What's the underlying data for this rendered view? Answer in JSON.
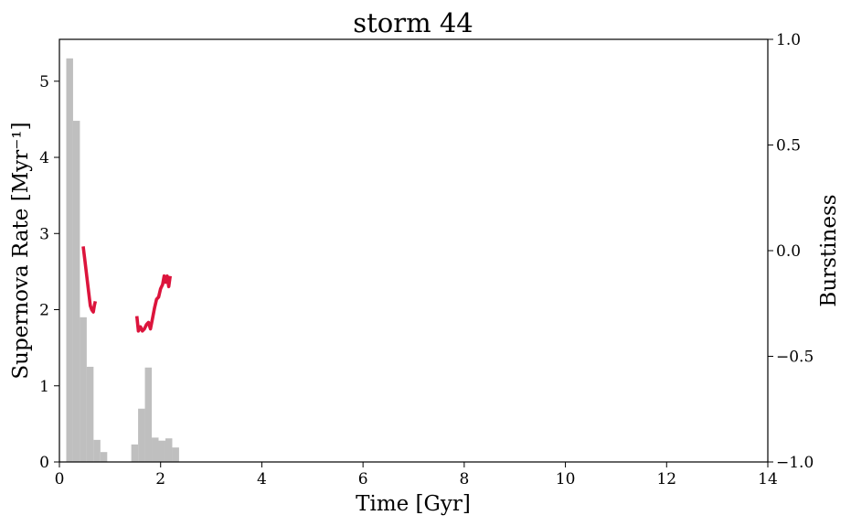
{
  "chart_data": {
    "type": "bar",
    "title": "storm 44",
    "xlabel": "Time [Gyr]",
    "ylabel": "Supernova Rate [Myr⁻¹]",
    "y2label": "Burstiness",
    "xlim": [
      0,
      14
    ],
    "ylim": [
      0,
      5.55
    ],
    "y2lim": [
      -1.0,
      1.0
    ],
    "grid": false,
    "xticks": [
      "0",
      "2",
      "4",
      "6",
      "8",
      "10",
      "12",
      "14"
    ],
    "xtick_values": [
      0,
      2,
      4,
      6,
      8,
      10,
      12,
      14
    ],
    "yticks": [
      "0",
      "1",
      "2",
      "3",
      "4",
      "5"
    ],
    "ytick_values": [
      0,
      1,
      2,
      3,
      4,
      5
    ],
    "y2ticks": [
      "−1.0",
      "−0.5",
      "0.0",
      "0.5",
      "1.0"
    ],
    "y2tick_values": [
      -1.0,
      -0.5,
      0.0,
      0.5,
      1.0
    ],
    "histogram": {
      "color": "#bfbfbf",
      "bin_width": 0.135,
      "bins": [
        {
          "x": 0.135,
          "value": 5.3
        },
        {
          "x": 0.27,
          "value": 4.48
        },
        {
          "x": 0.405,
          "value": 1.9
        },
        {
          "x": 0.54,
          "value": 1.25
        },
        {
          "x": 0.675,
          "value": 0.29
        },
        {
          "x": 0.81,
          "value": 0.13
        },
        {
          "x": 1.42,
          "value": 0.23
        },
        {
          "x": 1.555,
          "value": 0.7
        },
        {
          "x": 1.69,
          "value": 1.24
        },
        {
          "x": 1.825,
          "value": 0.32
        },
        {
          "x": 1.96,
          "value": 0.28
        },
        {
          "x": 2.095,
          "value": 0.31
        },
        {
          "x": 2.23,
          "value": 0.19
        }
      ]
    },
    "series": [
      {
        "axis": "right",
        "color": "#dc143c",
        "segments": [
          [
            [
              0.47,
              0.02
            ],
            [
              0.5,
              -0.04
            ],
            [
              0.54,
              -0.12
            ],
            [
              0.58,
              -0.2
            ],
            [
              0.61,
              -0.26
            ],
            [
              0.64,
              -0.28
            ],
            [
              0.67,
              -0.29
            ],
            [
              0.69,
              -0.26
            ],
            [
              0.71,
              -0.24
            ]
          ],
          [
            [
              1.53,
              -0.31
            ],
            [
              1.56,
              -0.38
            ],
            [
              1.6,
              -0.36
            ],
            [
              1.64,
              -0.38
            ],
            [
              1.68,
              -0.37
            ],
            [
              1.72,
              -0.35
            ],
            [
              1.76,
              -0.34
            ],
            [
              1.8,
              -0.37
            ],
            [
              1.84,
              -0.32
            ],
            [
              1.88,
              -0.27
            ],
            [
              1.92,
              -0.23
            ],
            [
              1.96,
              -0.22
            ],
            [
              2.0,
              -0.18
            ],
            [
              2.04,
              -0.16
            ],
            [
              2.07,
              -0.12
            ],
            [
              2.1,
              -0.15
            ],
            [
              2.13,
              -0.12
            ],
            [
              2.16,
              -0.17
            ],
            [
              2.19,
              -0.12
            ]
          ]
        ]
      }
    ]
  }
}
